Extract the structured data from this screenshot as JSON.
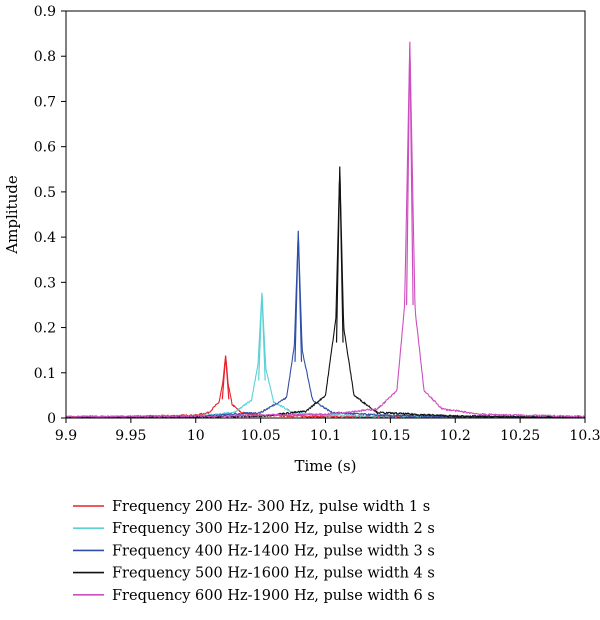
{
  "chart_data": {
    "type": "line",
    "title": "",
    "xlabel": "Time (s)",
    "ylabel": "Amplitude",
    "xlim": [
      9.9,
      10.3
    ],
    "ylim": [
      0,
      0.9
    ],
    "xticks": [
      "9.9",
      "9.95",
      "10",
      "10.05",
      "10.1",
      "10.15",
      "10.2",
      "10.25",
      "10.3"
    ],
    "yticks": [
      "0",
      "0.1",
      "0.2",
      "0.3",
      "0.4",
      "0.5",
      "0.6",
      "0.7",
      "0.8",
      "0.9"
    ],
    "grid": false,
    "legend_position": "bottom",
    "series": [
      {
        "name": "Frequency 200 Hz- 300 Hz, pulse width 1 s",
        "color": "#e8202a",
        "peak_x": 10.023,
        "peak_y": 0.138,
        "points": [
          [
            9.9,
            0.002
          ],
          [
            9.95,
            0.003
          ],
          [
            10.0,
            0.006
          ],
          [
            10.01,
            0.012
          ],
          [
            10.018,
            0.035
          ],
          [
            10.021,
            0.08
          ],
          [
            10.023,
            0.138
          ],
          [
            10.025,
            0.075
          ],
          [
            10.028,
            0.03
          ],
          [
            10.035,
            0.012
          ],
          [
            10.05,
            0.006
          ],
          [
            10.1,
            0.003
          ],
          [
            10.3,
            0.002
          ]
        ]
      },
      {
        "name": "Frequency 300 Hz-1200 Hz, pulse width 2 s",
        "color": "#5bd1d6",
        "peak_x": 10.051,
        "peak_y": 0.277,
        "points": [
          [
            9.9,
            0.001
          ],
          [
            10.0,
            0.004
          ],
          [
            10.03,
            0.012
          ],
          [
            10.043,
            0.04
          ],
          [
            10.048,
            0.12
          ],
          [
            10.051,
            0.277
          ],
          [
            10.054,
            0.11
          ],
          [
            10.06,
            0.035
          ],
          [
            10.075,
            0.012
          ],
          [
            10.1,
            0.006
          ],
          [
            10.3,
            0.001
          ]
        ]
      },
      {
        "name": "Frequency 400 Hz-1400 Hz, pulse width 3 s",
        "color": "#2e4fa8",
        "peak_x": 10.079,
        "peak_y": 0.414,
        "points": [
          [
            9.9,
            0.001
          ],
          [
            10.0,
            0.003
          ],
          [
            10.05,
            0.012
          ],
          [
            10.07,
            0.045
          ],
          [
            10.076,
            0.16
          ],
          [
            10.079,
            0.414
          ],
          [
            10.082,
            0.15
          ],
          [
            10.09,
            0.04
          ],
          [
            10.105,
            0.012
          ],
          [
            10.15,
            0.005
          ],
          [
            10.3,
            0.001
          ]
        ]
      },
      {
        "name": "Frequency 500 Hz-1600 Hz, pulse width 4 s",
        "color": "#111111",
        "peak_x": 10.111,
        "peak_y": 0.556,
        "points": [
          [
            9.9,
            0.001
          ],
          [
            10.05,
            0.004
          ],
          [
            10.085,
            0.015
          ],
          [
            10.1,
            0.05
          ],
          [
            10.108,
            0.22
          ],
          [
            10.111,
            0.556
          ],
          [
            10.114,
            0.2
          ],
          [
            10.122,
            0.05
          ],
          [
            10.14,
            0.012
          ],
          [
            10.2,
            0.004
          ],
          [
            10.3,
            0.001
          ]
        ]
      },
      {
        "name": "Frequency 600 Hz-1900 Hz, pulse width 6 s",
        "color": "#cc4fc0",
        "peak_x": 10.165,
        "peak_y": 0.832,
        "points": [
          [
            9.9,
            0.003
          ],
          [
            10.0,
            0.004
          ],
          [
            10.1,
            0.008
          ],
          [
            10.14,
            0.02
          ],
          [
            10.155,
            0.06
          ],
          [
            10.161,
            0.25
          ],
          [
            10.165,
            0.832
          ],
          [
            10.169,
            0.24
          ],
          [
            10.176,
            0.06
          ],
          [
            10.19,
            0.02
          ],
          [
            10.22,
            0.008
          ],
          [
            10.3,
            0.003
          ]
        ]
      }
    ]
  }
}
